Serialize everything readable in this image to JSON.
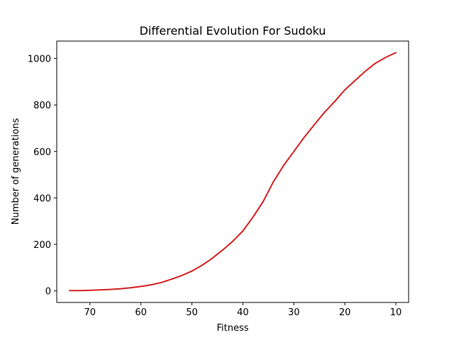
{
  "chart_data": {
    "type": "line",
    "title": "Differential Evolution For Sudoku",
    "xlabel": "Fitness",
    "ylabel": "Number of generations",
    "x_inverted": true,
    "xlim": [
      76.5,
      7.5
    ],
    "ylim": [
      -50,
      1075
    ],
    "xticks": [
      70,
      60,
      50,
      40,
      30,
      20,
      10
    ],
    "xtick_labels": [
      "70",
      "60",
      "50",
      "40",
      "30",
      "20",
      "10"
    ],
    "yticks": [
      0,
      200,
      400,
      600,
      800,
      1000
    ],
    "ytick_labels": [
      "0",
      "200",
      "400",
      "600",
      "800",
      "1000"
    ],
    "grid": false,
    "color": "#d62020",
    "series": [
      {
        "x": [
          74,
          72,
          70,
          68,
          66,
          64,
          62,
          60,
          58,
          56,
          54,
          52,
          50,
          48,
          46,
          44,
          42,
          40,
          38,
          36,
          34,
          32,
          30,
          28,
          26,
          24,
          22,
          20,
          18,
          16,
          14,
          12,
          10
        ],
        "values": [
          1,
          1,
          2,
          4,
          6,
          9,
          13,
          19,
          26,
          36,
          50,
          66,
          85,
          110,
          140,
          175,
          213,
          258,
          318,
          385,
          470,
          540,
          600,
          660,
          715,
          768,
          815,
          865,
          905,
          945,
          980,
          1005,
          1025
        ]
      }
    ]
  }
}
